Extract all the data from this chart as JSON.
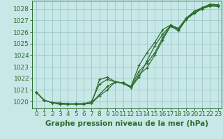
{
  "title": "Graphe pression niveau de la mer (hPa)",
  "bg_color": "#c8e8e8",
  "grid_color": "#a0cccc",
  "line_color": "#2d6e2d",
  "xlim": [
    -0.5,
    23.5
  ],
  "ylim": [
    1019.4,
    1028.7
  ],
  "yticks": [
    1020,
    1021,
    1022,
    1023,
    1024,
    1025,
    1026,
    1027,
    1028
  ],
  "xticks": [
    0,
    1,
    2,
    3,
    4,
    5,
    6,
    7,
    8,
    9,
    10,
    11,
    12,
    13,
    14,
    15,
    16,
    17,
    18,
    19,
    20,
    21,
    22,
    23
  ],
  "series": [
    [
      1020.8,
      1020.1,
      1019.9,
      1019.85,
      1019.8,
      1019.8,
      1019.8,
      1019.85,
      1020.5,
      1021.0,
      1021.7,
      1021.6,
      1021.3,
      1022.6,
      1023.3,
      1024.2,
      1025.5,
      1026.6,
      1026.3,
      1027.2,
      1027.7,
      1028.1,
      1028.3,
      1028.35
    ],
    [
      1020.8,
      1020.1,
      1019.9,
      1019.85,
      1019.8,
      1019.8,
      1019.8,
      1019.85,
      1021.9,
      1022.1,
      1021.7,
      1021.6,
      1021.3,
      1023.1,
      1024.2,
      1025.1,
      1026.2,
      1026.6,
      1026.3,
      1027.2,
      1027.8,
      1028.1,
      1028.4,
      1028.35
    ],
    [
      1020.8,
      1020.1,
      1019.9,
      1019.75,
      1019.78,
      1019.75,
      1019.75,
      1019.9,
      1020.6,
      1021.3,
      1021.7,
      1021.6,
      1021.2,
      1022.3,
      1022.9,
      1024.0,
      1025.3,
      1026.5,
      1026.1,
      1027.1,
      1027.6,
      1028.0,
      1028.25,
      1028.2
    ],
    [
      1020.8,
      1020.1,
      1019.9,
      1019.8,
      1019.75,
      1019.8,
      1019.8,
      1020.0,
      1021.5,
      1021.9,
      1021.7,
      1021.55,
      1021.2,
      1022.1,
      1023.5,
      1024.8,
      1025.8,
      1026.55,
      1026.2,
      1027.1,
      1027.7,
      1028.0,
      1028.3,
      1028.25
    ]
  ],
  "marker": "+",
  "marker_size": 3.5,
  "linewidth": 0.9,
  "tick_fontsize": 6.5,
  "xlabel_fontsize": 7.5
}
